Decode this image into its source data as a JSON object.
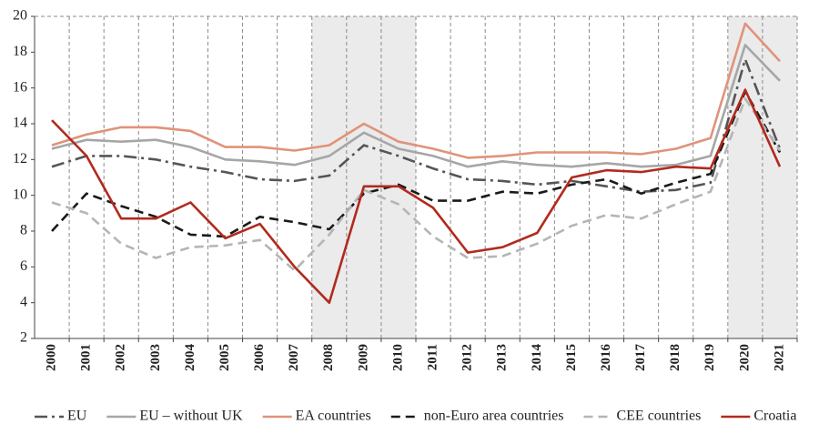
{
  "chart_data": {
    "type": "line",
    "categories": [
      "2000",
      "2001",
      "2002",
      "2003",
      "2004",
      "2005",
      "2006",
      "2007",
      "2008",
      "2009",
      "2010",
      "2011",
      "2012",
      "2013",
      "2014",
      "2015",
      "2016",
      "2017",
      "2018",
      "2019",
      "2020",
      "2021"
    ],
    "ylim": [
      2,
      20
    ],
    "yticks": [
      2,
      4,
      6,
      8,
      10,
      12,
      14,
      16,
      18,
      20
    ],
    "shaded": [
      {
        "from": "2008",
        "to": "2010"
      },
      {
        "from": "2020",
        "to": "2021"
      }
    ],
    "legend": "bottom",
    "series": [
      {
        "name": "EU",
        "color": "#555555",
        "dash": "14 5 3 5",
        "values": [
          11.6,
          12.2,
          12.2,
          12.0,
          11.6,
          11.3,
          10.9,
          10.8,
          11.1,
          12.8,
          12.2,
          11.5,
          10.9,
          10.8,
          10.6,
          10.8,
          10.5,
          10.2,
          10.3,
          10.7,
          17.6,
          12.6
        ]
      },
      {
        "name": "EU – without UK",
        "color": "#a6a6a6",
        "dash": "",
        "values": [
          12.6,
          13.1,
          13.0,
          13.1,
          12.7,
          12.0,
          11.9,
          11.7,
          12.2,
          13.5,
          12.6,
          12.2,
          11.6,
          11.9,
          11.7,
          11.6,
          11.8,
          11.6,
          11.7,
          12.2,
          18.4,
          16.4
        ]
      },
      {
        "name": "EA countries",
        "color": "#e0937a",
        "dash": "",
        "values": [
          12.8,
          13.4,
          13.8,
          13.8,
          13.6,
          12.7,
          12.7,
          12.5,
          12.8,
          14.0,
          13.0,
          12.6,
          12.1,
          12.2,
          12.4,
          12.4,
          12.4,
          12.3,
          12.6,
          13.2,
          19.6,
          17.5
        ]
      },
      {
        "name": "non-Euro area countries",
        "color": "#1a1a1a",
        "dash": "10 6",
        "values": [
          8.0,
          10.1,
          9.4,
          8.8,
          7.8,
          7.7,
          8.8,
          8.5,
          8.1,
          10.1,
          10.6,
          9.7,
          9.7,
          10.2,
          10.1,
          10.6,
          10.9,
          10.1,
          10.7,
          11.2,
          15.8,
          12.4
        ]
      },
      {
        "name": "CEE countries",
        "color": "#b5b5b5",
        "dash": "10 6",
        "values": [
          9.6,
          9.0,
          7.3,
          6.5,
          7.1,
          7.2,
          7.5,
          5.8,
          7.8,
          10.3,
          9.5,
          7.7,
          6.5,
          6.6,
          7.3,
          8.3,
          8.9,
          8.7,
          9.5,
          10.2,
          15.4,
          12.5
        ]
      },
      {
        "name": "Croatia",
        "color": "#b22a1e",
        "dash": "",
        "values": [
          14.2,
          12.2,
          8.7,
          8.7,
          9.6,
          7.6,
          8.4,
          6.0,
          4.0,
          10.5,
          10.5,
          9.3,
          6.8,
          7.1,
          7.9,
          11.0,
          11.4,
          11.3,
          11.6,
          11.5,
          15.9,
          11.6
        ]
      }
    ]
  }
}
